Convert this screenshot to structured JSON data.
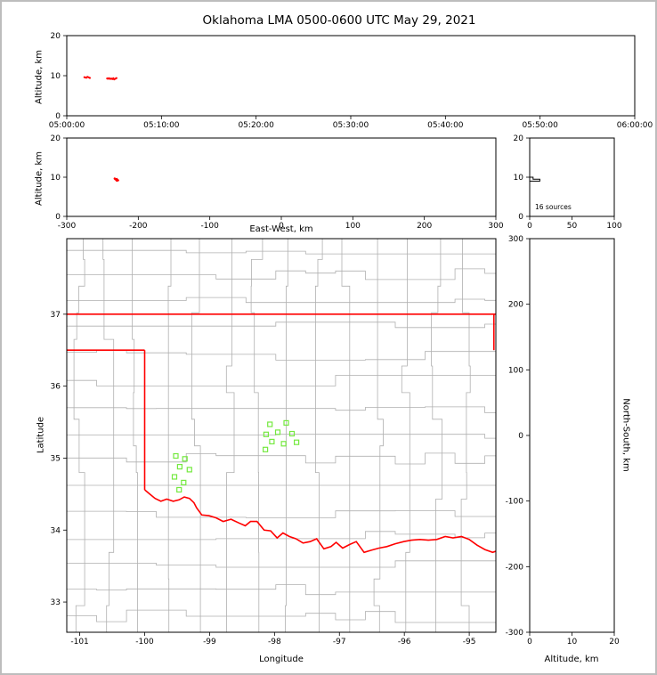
{
  "labels": {
    "title": "Oklahoma LMA 0500-0600 UTC May 29, 2021",
    "altitude_km": "Altitude, km",
    "east_west": "East-West, km",
    "latitude": "Latitude",
    "longitude": "Longitude",
    "north_south": "North-South, km",
    "sources_note": "16 sources"
  },
  "colors": {
    "background": "#ffffff",
    "page_border": "#bdbdbd",
    "axes": "#000000",
    "county": "#b0b0b0",
    "state": "#ff0000",
    "station": "#74e93f",
    "source": "#ff0000",
    "histogram": "#000000"
  },
  "chart_data": [
    {
      "id": "time_height",
      "type": "scatter",
      "description": "VHF source altitude vs time",
      "xlabel": "",
      "ylabel": "Altitude, km",
      "xlim_seconds": [
        0,
        3600
      ],
      "xticks": [
        {
          "t": 0,
          "label": "05:00:00"
        },
        {
          "t": 600,
          "label": "05:10:00"
        },
        {
          "t": 1200,
          "label": "05:20:00"
        },
        {
          "t": 1800,
          "label": "05:30:00"
        },
        {
          "t": 2400,
          "label": "05:40:00"
        },
        {
          "t": 3000,
          "label": "05:50:00"
        },
        {
          "t": 3600,
          "label": "06:00:00"
        }
      ],
      "ylim": [
        0,
        20
      ],
      "yticks": [
        0,
        10,
        20
      ],
      "point_color": "#ff0000",
      "points_t_alt": [
        [
          112,
          9.62
        ],
        [
          118,
          9.55
        ],
        [
          124,
          9.48
        ],
        [
          131,
          9.7
        ],
        [
          138,
          9.58
        ],
        [
          146,
          9.44
        ],
        [
          256,
          9.32
        ],
        [
          262,
          9.25
        ],
        [
          268,
          9.38
        ],
        [
          275,
          9.21
        ],
        [
          282,
          9.29
        ],
        [
          289,
          9.15
        ],
        [
          295,
          9.35
        ],
        [
          301,
          9.1
        ],
        [
          308,
          9.24
        ],
        [
          315,
          9.41
        ]
      ]
    },
    {
      "id": "ew_height",
      "type": "scatter",
      "description": "VHF source altitude vs east-west distance",
      "xlabel": "East-West, km",
      "ylabel": "Altitude, km",
      "xlim": [
        -300,
        300
      ],
      "xticks": [
        -300,
        -200,
        -100,
        0,
        100,
        200,
        300
      ],
      "ylim": [
        0,
        20
      ],
      "yticks": [
        0,
        10,
        20
      ],
      "point_color": "#ff0000",
      "points_ew_alt": [
        [
          -233,
          9.62
        ],
        [
          -232,
          9.55
        ],
        [
          -231,
          9.48
        ],
        [
          -233,
          9.7
        ],
        [
          -230,
          9.58
        ],
        [
          -232,
          9.44
        ],
        [
          -229,
          9.32
        ],
        [
          -230,
          9.25
        ],
        [
          -231,
          9.38
        ],
        [
          -228,
          9.21
        ],
        [
          -230,
          9.29
        ],
        [
          -229,
          9.15
        ],
        [
          -231,
          9.35
        ],
        [
          -230,
          9.1
        ],
        [
          -229,
          9.24
        ],
        [
          -230,
          9.41
        ]
      ]
    },
    {
      "id": "alt_histogram",
      "type": "line",
      "description": "Histogram of source counts vs altitude",
      "annotation": "16 sources",
      "xlabel": "",
      "ylabel": "",
      "xlim": [
        0,
        100
      ],
      "xticks": [
        0,
        50,
        100
      ],
      "ylim": [
        0,
        20
      ],
      "yticks": [
        0,
        10,
        20
      ],
      "bins": [
        {
          "alt_min": 9.0,
          "alt_max": 9.5,
          "count": 12
        },
        {
          "alt_min": 9.5,
          "alt_max": 10.0,
          "count": 4
        }
      ]
    },
    {
      "id": "map",
      "type": "scatter",
      "description": "Plan view map: Oklahoma state boundary (red), county lines (gray), LMA stations (green squares)",
      "xlabel": "Longitude",
      "ylabel": "Latitude",
      "xlim": [
        -101.2,
        -94.59
      ],
      "xticks": [
        -101,
        -100,
        -99,
        -98,
        -97,
        -96,
        -95
      ],
      "ylim": [
        32.58,
        38.05
      ],
      "yticks": [
        33,
        34,
        35,
        36,
        37
      ],
      "stations_lon_lat": [
        [
          -98.07,
          35.47
        ],
        [
          -97.82,
          35.49
        ],
        [
          -98.13,
          35.33
        ],
        [
          -97.95,
          35.36
        ],
        [
          -97.73,
          35.34
        ],
        [
          -98.04,
          35.23
        ],
        [
          -97.86,
          35.2
        ],
        [
          -98.14,
          35.12
        ],
        [
          -97.66,
          35.22
        ],
        [
          -99.52,
          35.03
        ],
        [
          -99.38,
          34.99
        ],
        [
          -99.46,
          34.88
        ],
        [
          -99.31,
          34.84
        ],
        [
          -99.54,
          34.74
        ],
        [
          -99.4,
          34.66
        ],
        [
          -99.47,
          34.56
        ]
      ],
      "state_boundary": {
        "kansas_border_lat37": [
          [
            -101.3,
            37.0
          ],
          [
            -94.43,
            37.0
          ]
        ],
        "panhandle_south_lat365": [
          [
            -101.3,
            36.5
          ],
          [
            -100.0,
            36.5
          ]
        ],
        "texas_border_lon100": [
          [
            -100.0,
            36.5
          ],
          [
            -100.0,
            34.56
          ]
        ],
        "arkansas_border": [
          [
            -94.62,
            37.0
          ],
          [
            -94.62,
            36.5
          ]
        ],
        "red_river": [
          [
            -100.0,
            34.56
          ],
          [
            -99.92,
            34.5
          ],
          [
            -99.84,
            34.44
          ],
          [
            -99.75,
            34.4
          ],
          [
            -99.66,
            34.43
          ],
          [
            -99.56,
            34.4
          ],
          [
            -99.47,
            34.42
          ],
          [
            -99.39,
            34.46
          ],
          [
            -99.31,
            34.44
          ],
          [
            -99.24,
            34.38
          ],
          [
            -99.2,
            34.31
          ],
          [
            -99.12,
            34.21
          ],
          [
            -99.01,
            34.2
          ],
          [
            -98.9,
            34.17
          ],
          [
            -98.79,
            34.12
          ],
          [
            -98.67,
            34.15
          ],
          [
            -98.55,
            34.1
          ],
          [
            -98.45,
            34.06
          ],
          [
            -98.37,
            34.12
          ],
          [
            -98.27,
            34.12
          ],
          [
            -98.16,
            34.0
          ],
          [
            -98.06,
            33.99
          ],
          [
            -97.96,
            33.89
          ],
          [
            -97.87,
            33.96
          ],
          [
            -97.77,
            33.91
          ],
          [
            -97.67,
            33.88
          ],
          [
            -97.56,
            33.82
          ],
          [
            -97.45,
            33.84
          ],
          [
            -97.35,
            33.88
          ],
          [
            -97.24,
            33.74
          ],
          [
            -97.13,
            33.77
          ],
          [
            -97.05,
            33.83
          ],
          [
            -96.95,
            33.75
          ],
          [
            -96.84,
            33.8
          ],
          [
            -96.74,
            33.84
          ],
          [
            -96.62,
            33.69
          ],
          [
            -96.51,
            33.72
          ],
          [
            -96.39,
            33.75
          ],
          [
            -96.27,
            33.77
          ],
          [
            -96.14,
            33.81
          ],
          [
            -96.01,
            33.84
          ],
          [
            -95.89,
            33.86
          ],
          [
            -95.76,
            33.87
          ],
          [
            -95.63,
            33.86
          ],
          [
            -95.5,
            33.87
          ],
          [
            -95.37,
            33.91
          ],
          [
            -95.25,
            33.89
          ],
          [
            -95.12,
            33.91
          ],
          [
            -95.0,
            33.87
          ],
          [
            -94.88,
            33.79
          ],
          [
            -94.76,
            33.73
          ],
          [
            -94.64,
            33.69
          ],
          [
            -94.55,
            33.72
          ]
        ]
      }
    },
    {
      "id": "ns_height",
      "type": "scatter",
      "description": "North-south distance vs altitude",
      "xlabel": "Altitude, km",
      "ylabel": "North-South, km",
      "xlim": [
        0,
        20
      ],
      "xticks": [
        0,
        10,
        20
      ],
      "ylim": [
        -300,
        300
      ],
      "yticks": [
        -300,
        -200,
        -100,
        0,
        100,
        200,
        300
      ],
      "points": []
    }
  ]
}
